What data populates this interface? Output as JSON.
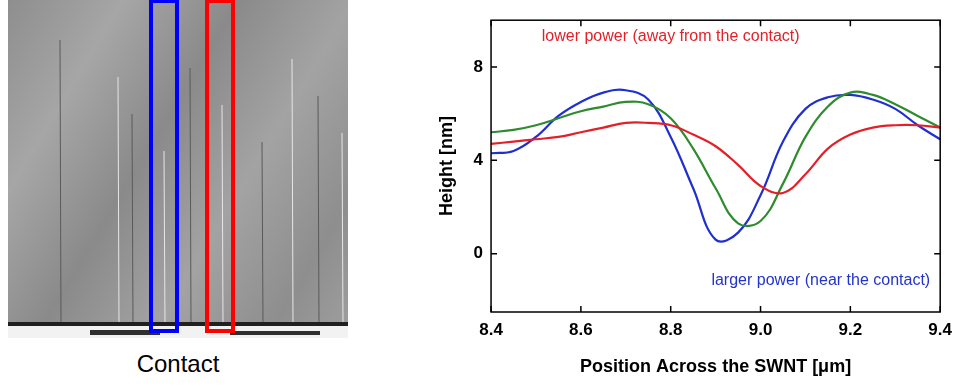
{
  "chart_data": {
    "type": "line",
    "x_label": "Position Across the SWNT [μm]",
    "y_label": "Height [nm]",
    "x": [
      8.4,
      8.45,
      8.5,
      8.55,
      8.6,
      8.65,
      8.7,
      8.75,
      8.8,
      8.85,
      8.9,
      8.95,
      9.0,
      9.05,
      9.1,
      9.15,
      9.2,
      9.25,
      9.3,
      9.35,
      9.4
    ],
    "series": [
      {
        "color": "#e3202a",
        "values": [
          4.7,
          4.8,
          4.9,
          5.0,
          5.2,
          5.4,
          5.6,
          5.6,
          5.5,
          5.1,
          4.6,
          3.8,
          2.9,
          2.6,
          3.4,
          4.5,
          5.1,
          5.4,
          5.5,
          5.5,
          5.4
        ]
      },
      {
        "color": "#2e8b2e",
        "values": [
          5.2,
          5.3,
          5.5,
          5.8,
          6.1,
          6.3,
          6.5,
          6.4,
          5.8,
          4.5,
          2.8,
          1.3,
          1.4,
          3.0,
          5.0,
          6.3,
          6.9,
          6.8,
          6.4,
          5.9,
          5.4
        ]
      },
      {
        "color": "#1f2fd0",
        "values": [
          4.3,
          4.4,
          5.0,
          5.9,
          6.5,
          6.9,
          7.0,
          6.6,
          5.0,
          2.8,
          0.6,
          0.9,
          2.5,
          4.8,
          6.2,
          6.7,
          6.8,
          6.6,
          6.2,
          5.5,
          4.9
        ]
      }
    ],
    "xlim": [
      8.4,
      9.4
    ],
    "xticks": [
      8.4,
      8.6,
      8.8,
      {
        "value": 9,
        "label": "9.0"
      },
      9.2,
      9.4
    ],
    "ylim": [
      -2.5,
      10
    ],
    "yticks": [
      0,
      4,
      8
    ],
    "grid": false,
    "annotations": [
      {
        "text": "lower power (away from the contact)",
        "color": "#e3202a"
      },
      {
        "text": "larger power (near the contact)",
        "color": "#2233cc"
      }
    ]
  },
  "image_panel": {
    "caption": "Contact"
  }
}
